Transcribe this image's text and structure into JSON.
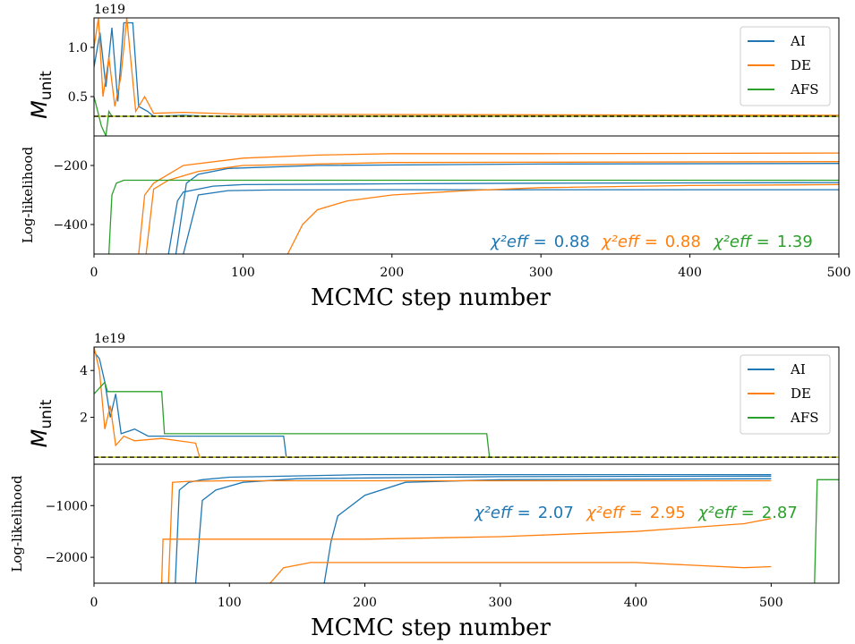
{
  "colors": {
    "AI": "#1f77b4",
    "DE": "#ff7f0e",
    "AFS": "#2ca02c",
    "reference_line": "#000000",
    "reference_overlay": "#bcbd22"
  },
  "chart_data": [
    {
      "type": "line",
      "panel": "top",
      "offset_text": "1e19",
      "xlabel": "MCMC step number",
      "xlim": [
        0,
        500
      ],
      "xticks": [
        "0",
        "100",
        "200",
        "300",
        "400",
        "500"
      ],
      "upper": {
        "ylabel_main": "M",
        "ylabel_sub": "unit",
        "ylim": [
          0.1,
          1.3
        ],
        "yticks": [
          "0.5",
          "1.0"
        ],
        "reference_value": 0.3,
        "legend": {
          "position": "upper right",
          "entries": [
            "AI",
            "DE",
            "AFS"
          ]
        },
        "series": [
          {
            "name": "AI",
            "x": [
              0,
              4,
              8,
              12,
              16,
              20,
              26,
              30,
              36,
              40,
              60,
              80,
              500
            ],
            "y": [
              0.8,
              1.15,
              0.6,
              1.2,
              0.45,
              1.25,
              1.25,
              0.4,
              0.35,
              0.3,
              0.31,
              0.3,
              0.3
            ]
          },
          {
            "name": "DE",
            "x": [
              0,
              3,
              6,
              10,
              14,
              18,
              22,
              28,
              34,
              40,
              60,
              100,
              500
            ],
            "y": [
              1.0,
              1.3,
              0.5,
              0.9,
              0.4,
              0.7,
              1.3,
              0.35,
              0.5,
              0.33,
              0.34,
              0.32,
              0.31
            ]
          },
          {
            "name": "AFS",
            "x": [
              0,
              5,
              8,
              10,
              12,
              20,
              40,
              500
            ],
            "y": [
              0.5,
              0.2,
              0.1,
              0.35,
              0.3,
              0.3,
              0.3,
              0.3
            ]
          }
        ]
      },
      "lower": {
        "ylabel": "Log-likelihood",
        "ylim": [
          -500,
          -100
        ],
        "yticks": [
          "−400",
          "−200"
        ],
        "series": [
          {
            "name": "AI",
            "x": [
              50,
              56,
              60,
              80,
              100,
              200,
              300,
              500
            ],
            "y": [
              -500,
              -320,
              -290,
              -270,
              -265,
              -262,
              -260,
              -258
            ]
          },
          {
            "name": "AI",
            "x": [
              55,
              62,
              70,
              90,
              150,
              300,
              500
            ],
            "y": [
              -500,
              -260,
              -230,
              -210,
              -200,
              -195,
              -193
            ]
          },
          {
            "name": "AI",
            "x": [
              60,
              70,
              90,
              120,
              200,
              500
            ],
            "y": [
              -500,
              -300,
              -285,
              -283,
              -282,
              -282
            ]
          },
          {
            "name": "DE",
            "x": [
              30,
              34,
              40,
              60,
              100,
              150,
              200,
              300,
              500
            ],
            "y": [
              -500,
              -300,
              -260,
              -200,
              -175,
              -165,
              -160,
              -160,
              -158
            ]
          },
          {
            "name": "DE",
            "x": [
              35,
              40,
              50,
              70,
              100,
              200,
              500
            ],
            "y": [
              -500,
              -280,
              -250,
              -220,
              -200,
              -190,
              -187
            ]
          },
          {
            "name": "DE",
            "x": [
              130,
              140,
              150,
              170,
              200,
              250,
              300,
              400,
              500
            ],
            "y": [
              -500,
              -400,
              -350,
              -320,
              -300,
              -285,
              -275,
              -268,
              -265
            ]
          },
          {
            "name": "AFS",
            "x": [
              10,
              12,
              15,
              20,
              60,
              100,
              200,
              300,
              500
            ],
            "y": [
              -500,
              -300,
              -260,
              -250,
              -250,
              -250,
              -250,
              -250,
              -250
            ]
          }
        ],
        "chi2": [
          {
            "series": "AI",
            "label": "χ²eff =",
            "value": "0.88"
          },
          {
            "series": "DE",
            "label": "χ²eff =",
            "value": "0.88"
          },
          {
            "series": "AFS",
            "label": "χ²eff =",
            "value": "1.39"
          }
        ]
      }
    },
    {
      "type": "line",
      "panel": "bottom",
      "offset_text": "1e19",
      "xlabel": "MCMC step number",
      "xlim": [
        0,
        550
      ],
      "xticks": [
        "0",
        "100",
        "200",
        "300",
        "400",
        "500"
      ],
      "upper": {
        "ylabel_main": "M",
        "ylabel_sub": "unit",
        "ylim": [
          0,
          5
        ],
        "yticks": [
          "2",
          "4"
        ],
        "reference_value": 0.3,
        "legend": {
          "position": "upper right",
          "entries": [
            "AI",
            "DE",
            "AFS"
          ]
        },
        "series": [
          {
            "name": "AI",
            "x": [
              0,
              4,
              8,
              12,
              16,
              20,
              30,
              40,
              70,
              100,
              140,
              142,
              500
            ],
            "y": [
              4.8,
              4.5,
              3.5,
              2.0,
              3.0,
              1.3,
              1.5,
              1.2,
              1.2,
              1.2,
              1.2,
              0.3,
              0.3
            ]
          },
          {
            "name": "DE",
            "x": [
              0,
              4,
              8,
              12,
              16,
              22,
              30,
              50,
              75,
              78,
              500
            ],
            "y": [
              5.0,
              4.0,
              1.5,
              2.5,
              0.8,
              1.2,
              1.0,
              1.1,
              0.9,
              0.3,
              0.3
            ]
          },
          {
            "name": "AFS",
            "x": [
              0,
              8,
              10,
              20,
              50,
              52,
              290,
              292,
              500
            ],
            "y": [
              3.0,
              3.5,
              3.1,
              3.1,
              3.1,
              1.3,
              1.3,
              0.3,
              0.3
            ]
          }
        ]
      },
      "lower": {
        "ylabel": "Log-likelihood",
        "ylim": [
          -2500,
          -200
        ],
        "yticks": [
          "−2000",
          "−1000"
        ],
        "series": [
          {
            "name": "AI",
            "x": [
              60,
              63,
              70,
              80,
              100,
              200,
              500
            ],
            "y": [
              -2500,
              -700,
              -550,
              -500,
              -450,
              -400,
              -400
            ]
          },
          {
            "name": "AI",
            "x": [
              75,
              80,
              90,
              110,
              150,
              300,
              500
            ],
            "y": [
              -2500,
              -900,
              -700,
              -550,
              -480,
              -440,
              -430
            ]
          },
          {
            "name": "AI",
            "x": [
              170,
              175,
              180,
              200,
              230,
              300,
              500
            ],
            "y": [
              -2500,
              -1700,
              -1200,
              -800,
              -550,
              -500,
              -480
            ]
          },
          {
            "name": "DE",
            "x": [
              55,
              58,
              70,
              100,
              200,
              500
            ],
            "y": [
              -2500,
              -550,
              -530,
              -520,
              -520,
              -520
            ]
          },
          {
            "name": "DE",
            "x": [
              50,
              51,
              100,
              200,
              300,
              400,
              480,
              500
            ],
            "y": [
              -2500,
              -1650,
              -1650,
              -1650,
              -1600,
              -1500,
              -1350,
              -1250
            ]
          },
          {
            "name": "DE",
            "x": [
              130,
              140,
              160,
              200,
              300,
              400,
              480,
              500
            ],
            "y": [
              -2500,
              -2200,
              -2100,
              -2100,
              -2100,
              -2100,
              -2200,
              -2180
            ]
          },
          {
            "name": "AFS",
            "x": [
              532,
              534,
              550
            ],
            "y": [
              -2500,
              -500,
              -500
            ]
          }
        ],
        "chi2": [
          {
            "series": "AI",
            "label": "χ²eff =",
            "value": "2.07"
          },
          {
            "series": "DE",
            "label": "χ²eff =",
            "value": "2.95"
          },
          {
            "series": "AFS",
            "label": "χ²eff =",
            "value": "2.87"
          }
        ]
      }
    }
  ]
}
